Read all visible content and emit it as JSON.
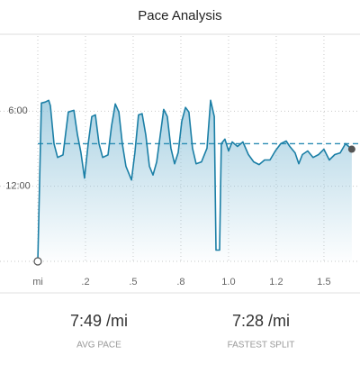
{
  "title": "Pace Analysis",
  "chart_data": {
    "type": "line",
    "color": "#1b7fa6",
    "fill_color": "#8fc3da",
    "avg_color": "#2b8db3",
    "x": [
      0,
      0.019,
      0.038,
      0.057,
      0.066,
      0.085,
      0.104,
      0.132,
      0.16,
      0.189,
      0.208,
      0.226,
      0.245,
      0.264,
      0.283,
      0.302,
      0.321,
      0.34,
      0.368,
      0.387,
      0.406,
      0.425,
      0.443,
      0.462,
      0.491,
      0.509,
      0.528,
      0.547,
      0.566,
      0.585,
      0.604,
      0.623,
      0.642,
      0.66,
      0.679,
      0.698,
      0.717,
      0.736,
      0.755,
      0.774,
      0.792,
      0.811,
      0.83,
      0.858,
      0.887,
      0.906,
      0.925,
      0.934,
      0.953,
      0.962,
      0.981,
      1.0,
      1.019,
      1.047,
      1.075,
      1.104,
      1.132,
      1.16,
      1.189,
      1.217,
      1.245,
      1.274,
      1.302,
      1.321,
      1.349,
      1.368,
      1.387,
      1.415,
      1.443,
      1.472,
      1.5,
      1.528,
      1.557,
      1.585,
      1.613,
      1.646
    ],
    "values": [
      18,
      5.35,
      5.28,
      5.13,
      5.57,
      8.6,
      9.7,
      9.5,
      6.07,
      5.93,
      7.9,
      9.3,
      11.35,
      8.6,
      6.43,
      6.3,
      8.6,
      9.7,
      9.5,
      7.16,
      5.42,
      6.07,
      8.6,
      10.4,
      11.5,
      9.3,
      6.3,
      6.2,
      7.9,
      10.4,
      11.1,
      10.05,
      7.9,
      5.86,
      6.43,
      8.96,
      10.2,
      9.3,
      6.8,
      5.7,
      6.07,
      8.96,
      10.2,
      10.05,
      8.96,
      5.13,
      6.43,
      17.1,
      17.1,
      8.6,
      8.24,
      9.18,
      8.46,
      8.82,
      8.46,
      9.47,
      10.05,
      10.27,
      9.9,
      9.9,
      9.18,
      8.6,
      8.39,
      8.82,
      9.33,
      10.2,
      9.47,
      9.18,
      9.7,
      9.47,
      9.04,
      9.9,
      9.47,
      9.33,
      8.6,
      9.04
    ],
    "avg_line": 8.6,
    "xlim": [
      0,
      1.689
    ],
    "xticks": [
      {
        "value": 0,
        "label": "mi"
      },
      {
        "value": 0.25,
        "label": ".2"
      },
      {
        "value": 0.5,
        "label": ".5"
      },
      {
        "value": 0.75,
        "label": ".8"
      },
      {
        "value": 1.0,
        "label": "1.0"
      },
      {
        "value": 1.25,
        "label": "1.2"
      },
      {
        "value": 1.5,
        "label": "1.5"
      }
    ],
    "ylim": [
      0,
      18
    ],
    "yticks": [
      {
        "value": 6,
        "label": "6:00"
      },
      {
        "value": 12,
        "label": "12:00"
      }
    ],
    "grid": true
  },
  "stats": [
    {
      "value": "7:49 /mi",
      "label": "AVG PACE"
    },
    {
      "value": "7:28 /mi",
      "label": "FASTEST SPLIT"
    }
  ]
}
